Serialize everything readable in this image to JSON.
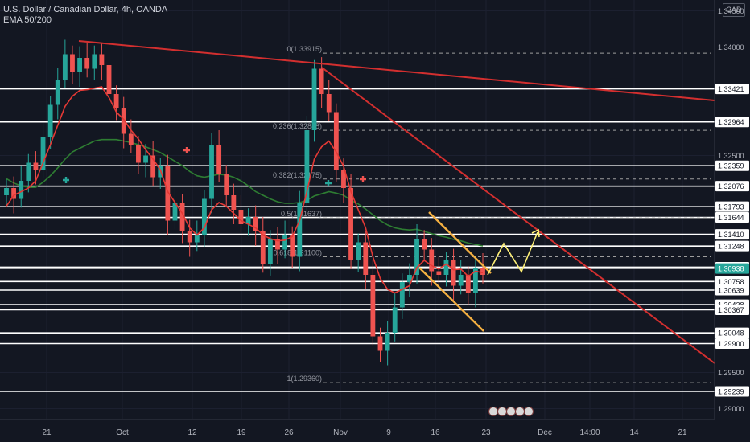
{
  "header": {
    "symbol_line": "U.S. Dollar / Canadian Dollar, 4h, OANDA",
    "indicator_line": "EMA 50/200"
  },
  "currency_badge": "CAD",
  "colors": {
    "background": "#131722",
    "up_candle": "#26a69a",
    "down_candle": "#ef5350",
    "ema_fast": "#e53935",
    "ema_slow": "#2e7d32",
    "trendline": "#d32f2f",
    "channel": "#f5b041",
    "projection": "#fff176",
    "level_line": "#ffffff",
    "fib_line": "#9e9e9e"
  },
  "chart_data": {
    "type": "line",
    "title": "",
    "ylim": [
      1.2885,
      1.3465
    ],
    "x_ticks": [
      "21",
      "Oct",
      "12",
      "19",
      "26",
      "Nov",
      "9",
      "16",
      "23",
      "Dec",
      "14:00",
      "14",
      "21"
    ],
    "y_ticks": [
      "1.34500",
      "1.34000",
      "1.32500",
      "1.29500",
      "1.29000"
    ],
    "horizontal_levels": [
      1.33421,
      1.32964,
      1.32359,
      1.32076,
      1.31793,
      1.31644,
      1.3141,
      1.31248,
      1.30956,
      1.30938,
      1.30758,
      1.30639,
      1.30438,
      1.30367,
      1.30048,
      1.299,
      1.29239
    ],
    "current_price": 1.30938,
    "fibonacci": [
      {
        "label": "0(1.33915)",
        "value": 1.33915
      },
      {
        "label": "0.236(1.32848)",
        "value": 1.32848
      },
      {
        "label": "0.382(1.32175)",
        "value": 1.32175
      },
      {
        "label": "0.5(1.31637)",
        "value": 1.31637
      },
      {
        "label": "0.618(1.31100)",
        "value": 1.311
      },
      {
        "label": "1(1.29360)",
        "value": 1.2936
      }
    ],
    "series": [
      {
        "values": [
          1.3205,
          1.319,
          1.3215,
          1.324,
          1.323,
          1.3275,
          1.332,
          1.3355,
          1.339,
          1.3365,
          1.3385,
          1.337,
          1.339,
          1.3375,
          1.3335,
          1.3315,
          1.328,
          1.3265,
          1.324,
          1.325,
          1.322,
          1.3235,
          1.316,
          1.3185,
          1.3145,
          1.313,
          1.314,
          1.319,
          1.3265,
          1.3225,
          1.3195,
          1.3175,
          1.3155,
          1.3165,
          1.3145,
          1.31,
          1.3135,
          1.312,
          1.314,
          1.311,
          1.3185,
          1.3285,
          1.337,
          1.3335,
          1.331,
          1.323,
          1.3205,
          1.3105,
          1.313,
          1.3085,
          1.3,
          1.298,
          1.3005,
          1.304,
          1.3075,
          1.3085,
          1.3135,
          1.312,
          1.309,
          1.3085,
          1.3105,
          1.307,
          1.3085,
          1.306,
          1.3095,
          1.3085
        ]
      },
      {
        "name": "EMA 50",
        "values": [
          1.318,
          1.3195,
          1.32,
          1.3205,
          1.3215,
          1.324,
          1.3265,
          1.3292,
          1.3318,
          1.3332,
          1.334,
          1.3341,
          1.3343,
          1.3345,
          1.333,
          1.331,
          1.33,
          1.3285,
          1.3273,
          1.3258,
          1.3245,
          1.323,
          1.32,
          1.3185,
          1.317,
          1.315,
          1.314,
          1.315,
          1.3175,
          1.3185,
          1.318,
          1.317,
          1.316,
          1.3155,
          1.315,
          1.314,
          1.3135,
          1.3132,
          1.3133,
          1.3138,
          1.316,
          1.32,
          1.3245,
          1.3262,
          1.327,
          1.3255,
          1.3235,
          1.32,
          1.3175,
          1.315,
          1.311,
          1.308,
          1.3065,
          1.306,
          1.3065,
          1.307,
          1.3095,
          1.3105,
          1.3098,
          1.3093,
          1.31,
          1.3092,
          1.3093,
          1.3083,
          1.309,
          1.3088
        ]
      },
      {
        "name": "EMA 200",
        "values": [
          1.3218,
          1.3212,
          1.3208,
          1.3206,
          1.3206,
          1.3213,
          1.3222,
          1.3233,
          1.3245,
          1.3255,
          1.326,
          1.3265,
          1.327,
          1.3272,
          1.3272,
          1.3272,
          1.327,
          1.3268,
          1.3265,
          1.3262,
          1.3258,
          1.3254,
          1.3248,
          1.3242,
          1.3236,
          1.3228,
          1.3222,
          1.322,
          1.3222,
          1.3224,
          1.3223,
          1.322,
          1.3215,
          1.3208,
          1.32,
          1.3195,
          1.319,
          1.3186,
          1.3184,
          1.3184,
          1.3185,
          1.3188,
          1.3194,
          1.3197,
          1.32,
          1.3198,
          1.3195,
          1.3188,
          1.3183,
          1.3176,
          1.3168,
          1.316,
          1.3154,
          1.315,
          1.3148,
          1.3147,
          1.3148,
          1.3145,
          1.3142,
          1.3139,
          1.3137,
          1.3134,
          1.3132,
          1.3129,
          1.3127,
          1.3125
        ]
      }
    ]
  }
}
